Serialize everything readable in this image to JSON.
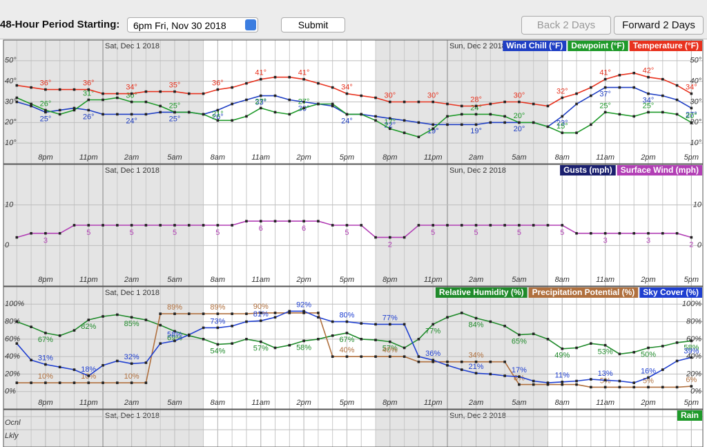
{
  "header": {
    "label": "48-Hour Period Starting:",
    "period": "6pm Fri, Nov 30 2018",
    "submit": "Submit",
    "back": "Back 2 Days",
    "forward": "Forward 2 Days"
  },
  "time_axis": {
    "xlim": [
      -0.93,
      47.8
    ],
    "xticks": [
      {
        "value": 2,
        "label": "8pm"
      },
      {
        "value": 5,
        "label": "11pm"
      },
      {
        "value": 8,
        "label": "2am"
      },
      {
        "value": 11,
        "label": "5am"
      },
      {
        "value": 14,
        "label": "8am"
      },
      {
        "value": 17,
        "label": "11am"
      },
      {
        "value": 20,
        "label": "2pm"
      },
      {
        "value": 23,
        "label": "5pm"
      },
      {
        "value": 26,
        "label": "8pm"
      },
      {
        "value": 29,
        "label": "11pm"
      },
      {
        "value": 32,
        "label": "2am"
      },
      {
        "value": 35,
        "label": "5am"
      },
      {
        "value": 38,
        "label": "8am"
      },
      {
        "value": 41,
        "label": "11am"
      },
      {
        "value": 44,
        "label": "2pm"
      },
      {
        "value": 47,
        "label": "5pm"
      }
    ],
    "days": [
      {
        "value": 6,
        "label": "Sat, Dec 1 2018"
      },
      {
        "value": 30,
        "label": "Sun, Dec 2 2018"
      }
    ]
  },
  "chart_data": [
    {
      "type": "line",
      "ylim": [
        0,
        60
      ],
      "yticks": [
        {
          "value": 10,
          "label": "10°"
        },
        {
          "value": 20,
          "label": "20°"
        },
        {
          "value": 30,
          "label": "30°"
        },
        {
          "value": 40,
          "label": "40°"
        },
        {
          "value": 50,
          "label": "50°"
        }
      ],
      "grid": true,
      "series": [
        {
          "name": "Wind Chill (°F)",
          "color": "#1f3fc4",
          "values": [
            30,
            28,
            25,
            26,
            27,
            26,
            24,
            24,
            24,
            24,
            25,
            25,
            25,
            24,
            26,
            29,
            31,
            33,
            33,
            31,
            30,
            29,
            28,
            24,
            24,
            23,
            22,
            21,
            20,
            19,
            19,
            19,
            19,
            20,
            20,
            20,
            20,
            18,
            23,
            29,
            33,
            37,
            37,
            37,
            34,
            33,
            31,
            27
          ],
          "value_labels": [
            null,
            null,
            "25°",
            null,
            null,
            "26°",
            null,
            null,
            "24°",
            null,
            null,
            "25°",
            null,
            null,
            "26°",
            null,
            null,
            "33°",
            null,
            null,
            "30°",
            null,
            null,
            "24°",
            null,
            null,
            "22°",
            null,
            null,
            "19°",
            null,
            null,
            "19°",
            null,
            null,
            "20°",
            null,
            null,
            "23°",
            null,
            null,
            "37°",
            null,
            null,
            "34°",
            null,
            null,
            "27°"
          ]
        },
        {
          "name": "Dewpoint (°F)",
          "color": "#1f9a2a",
          "values": [
            32,
            29,
            26,
            24,
            26,
            31,
            31,
            32,
            30,
            30,
            28,
            25,
            25,
            24,
            21,
            21,
            23,
            27,
            25,
            24,
            27,
            29,
            29,
            24,
            24,
            21,
            17,
            15,
            13,
            17,
            23,
            24,
            24,
            24,
            23,
            20,
            20,
            18,
            15,
            15,
            19,
            25,
            24,
            23,
            25,
            25,
            24,
            20
          ],
          "value_labels": [
            null,
            null,
            "26°",
            null,
            null,
            "31°",
            null,
            null,
            "30°",
            null,
            null,
            "25°",
            null,
            null,
            "21°",
            null,
            null,
            "27°",
            null,
            null,
            "27°",
            null,
            null,
            null,
            null,
            null,
            "17°",
            null,
            null,
            null,
            null,
            null,
            "24°",
            null,
            null,
            "20°",
            null,
            null,
            "15°",
            null,
            null,
            "25°",
            null,
            null,
            "25°",
            null,
            null,
            "20°"
          ]
        },
        {
          "name": "Temperature (°F)",
          "color": "#e8321e",
          "values": [
            38,
            37,
            36,
            36,
            36,
            36,
            34,
            34,
            34,
            35,
            35,
            35,
            34,
            34,
            36,
            37,
            39,
            41,
            42,
            42,
            41,
            39,
            37,
            34,
            33,
            32,
            30,
            30,
            30,
            30,
            29,
            28,
            28,
            29,
            30,
            30,
            29,
            28,
            32,
            34,
            37,
            41,
            43,
            44,
            42,
            41,
            38,
            34
          ],
          "value_labels": [
            null,
            null,
            "36°",
            null,
            null,
            "36°",
            null,
            null,
            "34°",
            null,
            null,
            "35°",
            null,
            null,
            "36°",
            null,
            null,
            "41°",
            null,
            null,
            "41°",
            null,
            null,
            "34°",
            null,
            null,
            "30°",
            null,
            null,
            "30°",
            null,
            null,
            "28°",
            null,
            null,
            "30°",
            null,
            null,
            "32°",
            null,
            null,
            "41°",
            null,
            null,
            "42°",
            null,
            null,
            "34°"
          ]
        }
      ]
    },
    {
      "type": "line",
      "ylim": [
        -10,
        20
      ],
      "yticks": [
        0,
        10
      ],
      "grid": true,
      "series": [
        {
          "name": "Gusts (mph)",
          "color": "#1a1f6e",
          "values": [
            null,
            null,
            null,
            null,
            null,
            null,
            null,
            null,
            null,
            null,
            null,
            null,
            null,
            null,
            null,
            null,
            null,
            null,
            null,
            null,
            null,
            null,
            null,
            null,
            null,
            null,
            null,
            null,
            null,
            null,
            null,
            null,
            null,
            null,
            null,
            null,
            null,
            null,
            null,
            null,
            null,
            null,
            null,
            null,
            null,
            null,
            null,
            null
          ]
        },
        {
          "name": "Surface Wind (mph)",
          "color": "#b23fb5",
          "values": [
            2,
            3,
            3,
            3,
            5,
            5,
            5,
            5,
            5,
            5,
            5,
            5,
            5,
            5,
            5,
            5,
            6,
            6,
            6,
            6,
            6,
            6,
            5,
            5,
            5,
            2,
            2,
            2,
            5,
            5,
            5,
            5,
            5,
            5,
            5,
            5,
            5,
            5,
            5,
            3,
            3,
            3,
            3,
            3,
            3,
            3,
            3,
            2
          ]
        }
      ]
    },
    {
      "type": "line",
      "ylim": [
        -20,
        120
      ],
      "yticks": [
        {
          "value": 0,
          "label": "0%"
        },
        {
          "value": 20,
          "label": "20%"
        },
        {
          "value": 40,
          "label": "40%"
        },
        {
          "value": 60,
          "label": "60%"
        },
        {
          "value": 80,
          "label": "80%"
        },
        {
          "value": 100,
          "label": "100%"
        }
      ],
      "grid": true,
      "series": [
        {
          "name": "Relative Humidity (%)",
          "color": "#1f8a2a",
          "values": [
            80,
            74,
            67,
            64,
            70,
            82,
            86,
            88,
            85,
            82,
            76,
            69,
            64,
            60,
            54,
            55,
            60,
            57,
            50,
            53,
            58,
            60,
            64,
            67,
            60,
            59,
            57,
            50,
            60,
            77,
            85,
            90,
            84,
            80,
            75,
            65,
            66,
            60,
            49,
            50,
            55,
            53,
            43,
            45,
            50,
            52,
            56,
            58
          ],
          "value_labels": [
            null,
            null,
            "67%",
            null,
            null,
            "82%",
            null,
            null,
            "85%",
            null,
            null,
            "69%",
            null,
            null,
            "54%",
            null,
            null,
            "57%",
            null,
            null,
            "58%",
            null,
            null,
            "67%",
            null,
            null,
            "57%",
            null,
            null,
            "77%",
            null,
            null,
            "84%",
            null,
            null,
            "65%",
            null,
            null,
            "49%",
            null,
            null,
            "53%",
            null,
            null,
            "50%",
            null,
            null,
            "58%"
          ]
        },
        {
          "name": "Precipitation Potential (%)",
          "color": "#b0703e",
          "values": [
            10,
            10,
            10,
            10,
            10,
            10,
            10,
            10,
            10,
            10,
            89,
            89,
            89,
            89,
            89,
            89,
            89,
            90,
            90,
            90,
            90,
            90,
            40,
            40,
            40,
            40,
            40,
            40,
            34,
            34,
            34,
            34,
            34,
            34,
            34,
            8,
            8,
            8,
            8,
            8,
            5,
            5,
            5,
            5,
            5,
            5,
            5,
            6
          ],
          "value_labels": [
            null,
            null,
            "10%",
            null,
            null,
            "10%",
            null,
            null,
            "10%",
            null,
            null,
            "89%",
            null,
            null,
            "89%",
            null,
            null,
            "90%",
            null,
            null,
            null,
            null,
            null,
            "40%",
            null,
            null,
            "40%",
            null,
            null,
            null,
            null,
            null,
            "34%",
            null,
            null,
            "8%",
            null,
            null,
            null,
            null,
            null,
            "5%",
            null,
            null,
            "5%",
            null,
            null,
            "6%"
          ]
        },
        {
          "name": "Sky Cover (%)",
          "color": "#1f3fd0",
          "values": [
            55,
            36,
            31,
            28,
            25,
            18,
            30,
            35,
            32,
            33,
            55,
            58,
            65,
            73,
            73,
            75,
            80,
            81,
            85,
            92,
            92,
            85,
            80,
            80,
            78,
            77,
            77,
            77,
            40,
            36,
            30,
            25,
            21,
            20,
            18,
            17,
            12,
            10,
            11,
            12,
            14,
            13,
            12,
            10,
            16,
            25,
            35,
            39
          ],
          "value_labels": [
            null,
            null,
            "31%",
            null,
            null,
            "18%",
            null,
            null,
            "32%",
            null,
            null,
            "58%",
            null,
            null,
            "73%",
            null,
            null,
            "81%",
            null,
            null,
            "92%",
            null,
            null,
            "80%",
            null,
            null,
            "77%",
            null,
            null,
            "36%",
            null,
            null,
            "21%",
            null,
            null,
            "17%",
            null,
            null,
            "11%",
            null,
            null,
            "13%",
            null,
            null,
            "16%",
            null,
            null,
            "39%"
          ]
        }
      ]
    },
    {
      "type": "line",
      "levels": [
        "Ocnl",
        "Lkly"
      ],
      "grid": true,
      "series": [
        {
          "name": "Rain",
          "color": "#1f9a2a",
          "values": [
            null,
            null,
            null,
            null,
            null,
            null,
            null,
            null,
            null,
            null,
            null,
            null,
            null,
            null,
            null,
            null,
            null,
            null,
            null,
            null,
            null,
            null,
            null,
            null,
            null,
            null,
            null,
            null,
            null,
            null,
            null,
            null,
            null,
            null,
            null,
            null,
            null,
            null,
            null,
            null,
            null,
            null,
            null,
            null,
            null,
            null,
            null,
            null
          ]
        }
      ]
    }
  ]
}
